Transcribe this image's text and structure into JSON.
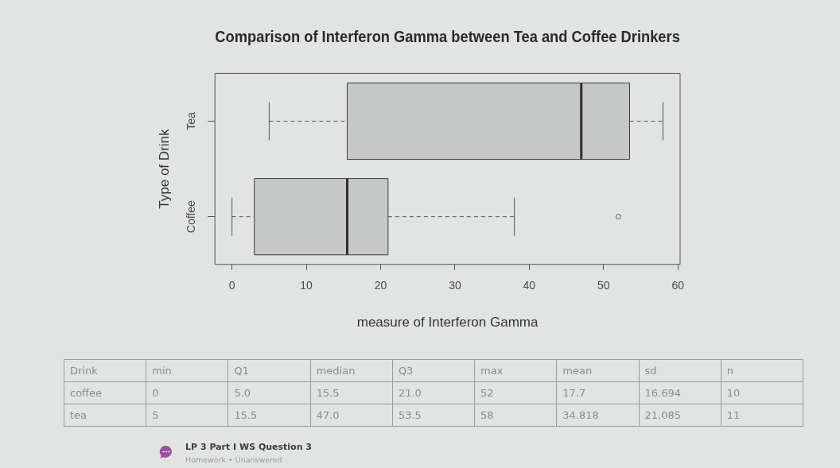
{
  "chart_data": [
    {
      "type": "box",
      "title": "Comparison of Interferon Gamma between Tea and Coffee Drinkers",
      "xlabel": "measure of Interferon Gamma",
      "ylabel": "Type of Drink",
      "orientation": "horizontal",
      "categories": [
        "Tea",
        "Coffee"
      ],
      "boxes": [
        {
          "low": 5,
          "q1": 15.5,
          "median": 47,
          "q3": 53.5,
          "high": 58
        },
        {
          "low": 0,
          "q1": 3,
          "median": 15.5,
          "q3": 21,
          "high": 38,
          "outliers": [
            52
          ]
        }
      ],
      "color": "#c6c8c8",
      "xlim": [
        -2.3,
        60.3
      ],
      "xticks": [
        0,
        10,
        20,
        30,
        40,
        50,
        60
      ],
      "line_style": "dashed",
      "marker": "circle"
    },
    {
      "type": "other",
      "legend_title": "Drink",
      "categories": [
        "min",
        "Q1",
        "median",
        "Q3",
        "max",
        "mean",
        "sd",
        "n"
      ],
      "series": [
        {
          "name": "coffee",
          "values": [
            0,
            5.0,
            15.5,
            21.0,
            52,
            17.7,
            16.694,
            10
          ],
          "value_labels": [
            "0",
            "5.0",
            "15.5",
            "21.0",
            "52",
            "17.7",
            "16.694",
            "10"
          ]
        },
        {
          "name": "tea",
          "values": [
            5,
            15.5,
            47.0,
            53.5,
            58,
            34.818,
            21.085,
            11
          ],
          "value_labels": [
            "5",
            "15.5",
            "47.0",
            "53.5",
            "58",
            "34.818",
            "21.085",
            "11"
          ]
        }
      ],
      "annotations": [
        "LP 3 Part I WS Question 3",
        "Homework • Unanswered"
      ]
    }
  ]
}
